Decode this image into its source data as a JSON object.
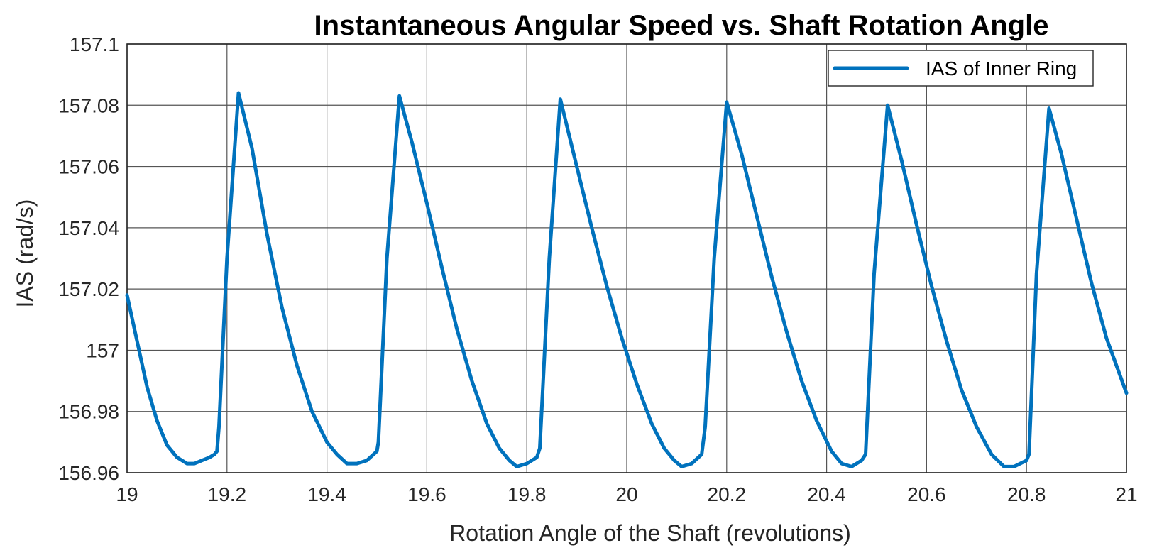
{
  "chart_data": {
    "type": "line",
    "title": "Instantaneous Angular Speed vs. Shaft Rotation Angle",
    "xlabel": "Rotation Angle of the Shaft (revolutions)",
    "ylabel": "IAS (rad/s)",
    "xlim": [
      19,
      21
    ],
    "ylim": [
      156.96,
      157.1
    ],
    "xticks": [
      19,
      19.2,
      19.4,
      19.6,
      19.8,
      20,
      20.2,
      20.4,
      20.6,
      20.8,
      21
    ],
    "yticks": [
      156.96,
      156.98,
      157,
      157.02,
      157.04,
      157.06,
      157.08,
      157.1
    ],
    "xtick_labels": [
      "19",
      "19.2",
      "19.4",
      "19.6",
      "19.8",
      "20",
      "20.2",
      "20.4",
      "20.6",
      "20.8",
      "21"
    ],
    "ytick_labels": [
      "156.96",
      "156.98",
      "157",
      "157.02",
      "157.04",
      "157.06",
      "157.08",
      "157.1"
    ],
    "grid": true,
    "legend_position": "top-right",
    "series": [
      {
        "name": "IAS of Inner Ring",
        "color": "#0072BD",
        "x": [
          19.0,
          19.02,
          19.04,
          19.06,
          19.08,
          19.1,
          19.12,
          19.135,
          19.15,
          19.165,
          19.175,
          19.18,
          19.184,
          19.2,
          19.223,
          19.25,
          19.28,
          19.31,
          19.34,
          19.37,
          19.4,
          19.42,
          19.44,
          19.46,
          19.48,
          19.5,
          19.503,
          19.52,
          19.545,
          19.57,
          19.6,
          19.63,
          19.66,
          19.69,
          19.72,
          19.745,
          19.765,
          19.78,
          19.8,
          19.82,
          19.826,
          19.845,
          19.867,
          19.9,
          19.93,
          19.96,
          19.99,
          20.02,
          20.05,
          20.075,
          20.095,
          20.11,
          20.13,
          20.15,
          20.157,
          20.175,
          20.2,
          20.23,
          20.26,
          20.29,
          20.32,
          20.35,
          20.38,
          20.41,
          20.43,
          20.45,
          20.47,
          20.478,
          20.495,
          20.522,
          20.55,
          20.58,
          20.61,
          20.64,
          20.67,
          20.7,
          20.73,
          20.755,
          20.775,
          20.8,
          20.805,
          20.82,
          20.845,
          20.87,
          20.9,
          20.93,
          20.96,
          21.0
        ],
        "y": [
          157.018,
          157.003,
          156.988,
          156.977,
          156.969,
          156.965,
          156.963,
          156.963,
          156.964,
          156.965,
          156.966,
          156.967,
          156.975,
          157.03,
          157.084,
          157.066,
          157.038,
          157.014,
          156.995,
          156.98,
          156.97,
          156.966,
          156.963,
          156.963,
          156.964,
          156.967,
          156.97,
          157.03,
          157.083,
          157.068,
          157.048,
          157.027,
          157.007,
          156.99,
          156.976,
          156.968,
          156.964,
          156.962,
          156.963,
          156.965,
          156.968,
          157.03,
          157.082,
          157.06,
          157.04,
          157.021,
          157.004,
          156.989,
          156.976,
          156.968,
          156.964,
          156.962,
          156.963,
          156.966,
          156.975,
          157.03,
          157.081,
          157.064,
          157.044,
          157.024,
          157.006,
          156.99,
          156.977,
          156.967,
          156.963,
          156.962,
          156.964,
          156.966,
          157.025,
          157.08,
          157.062,
          157.041,
          157.021,
          157.003,
          156.987,
          156.975,
          156.966,
          156.962,
          156.962,
          156.964,
          156.966,
          157.025,
          157.079,
          157.064,
          157.043,
          157.022,
          157.004,
          156.986
        ]
      }
    ]
  }
}
